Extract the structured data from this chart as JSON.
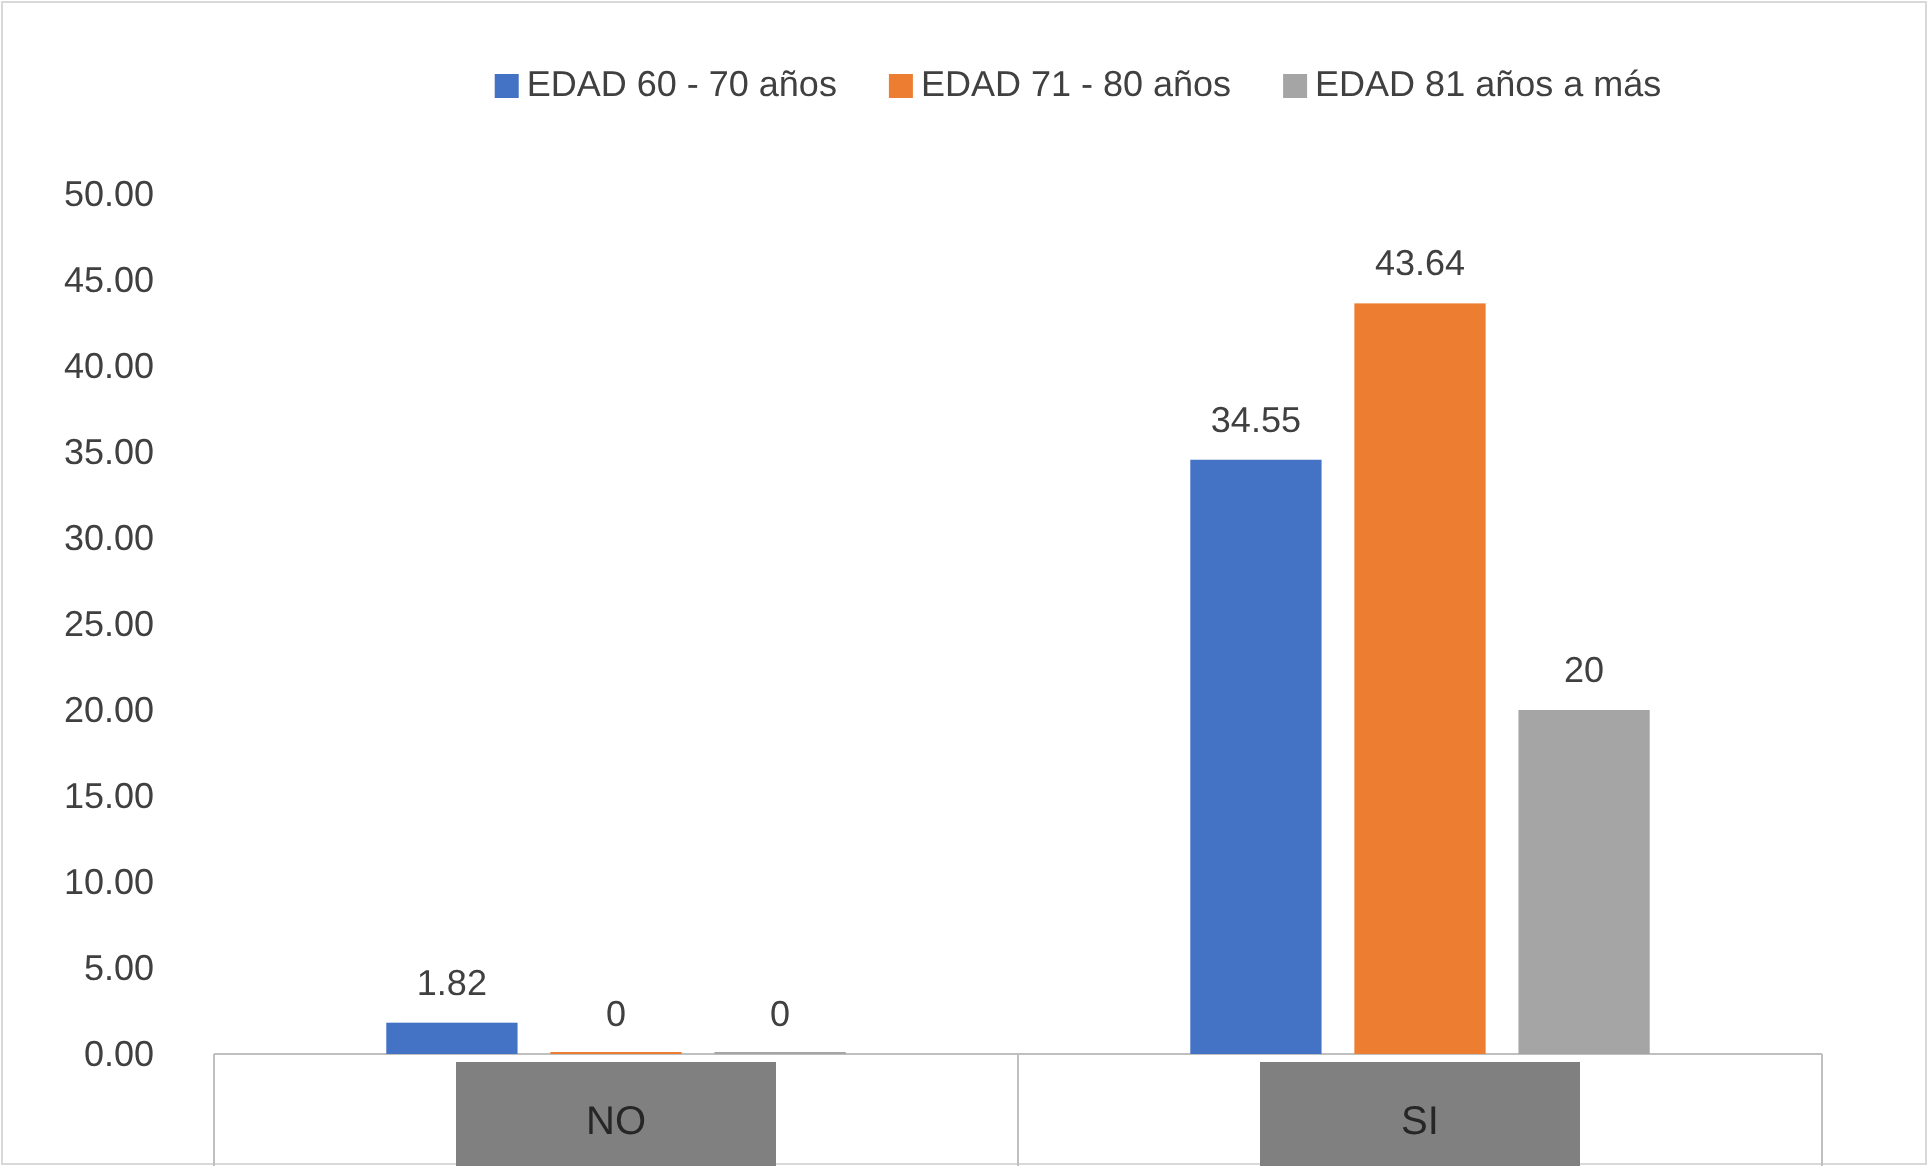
{
  "chart_data": {
    "type": "bar",
    "categories": [
      "NO",
      "SI"
    ],
    "series": [
      {
        "name": "EDAD 60 - 70 años",
        "color": "#4472c4",
        "values": [
          1.82,
          34.55
        ]
      },
      {
        "name": "EDAD 71 - 80 años",
        "color": "#ed7d31",
        "values": [
          0,
          43.64
        ]
      },
      {
        "name": "EDAD 81 años a más",
        "color": "#a5a5a5",
        "values": [
          0,
          20
        ]
      }
    ],
    "ylim": [
      0,
      50
    ],
    "yticks": [
      {
        "value": 0,
        "label": "0.00"
      },
      {
        "value": 5,
        "label": "5.00"
      },
      {
        "value": 10,
        "label": "10.00"
      },
      {
        "value": 15,
        "label": "15.00"
      },
      {
        "value": 20,
        "label": "20.00"
      },
      {
        "value": 25,
        "label": "25.00"
      },
      {
        "value": 30,
        "label": "30.00"
      },
      {
        "value": 35,
        "label": "35.00"
      },
      {
        "value": 40,
        "label": "40.00"
      },
      {
        "value": 45,
        "label": "45.00"
      },
      {
        "value": 50,
        "label": "50.00"
      }
    ],
    "data_labels": true,
    "legend": "top",
    "grid": false
  }
}
